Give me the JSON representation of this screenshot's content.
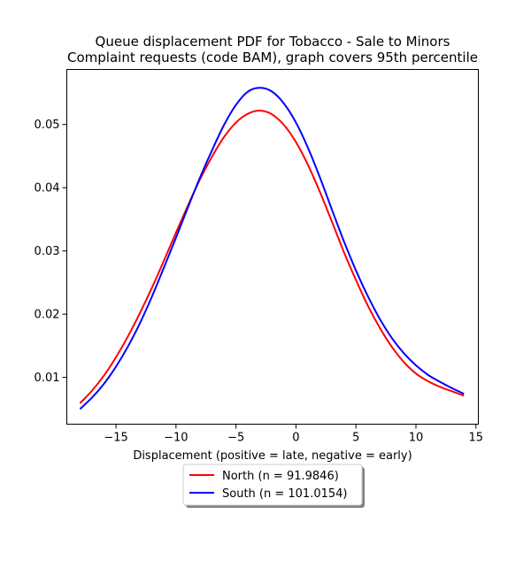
{
  "chart_data": {
    "type": "line",
    "title_lines": [
      "Queue displacement PDF for Tobacco - Sale to Minors",
      "Complaint  requests (code BAM), graph covers 95th percentile"
    ],
    "xlabel": "Displacement (positive = late, negative = early)",
    "ylabel": "",
    "xlim": [
      -19.1,
      15.2
    ],
    "ylim": [
      0.0026,
      0.0587
    ],
    "x_ticks": [
      -15,
      -10,
      -5,
      0,
      5,
      10,
      15
    ],
    "x_tick_labels": [
      "−15",
      "−10",
      "−5",
      "0",
      "5",
      "10",
      "15"
    ],
    "y_ticks": [
      0.01,
      0.02,
      0.03,
      0.04,
      0.05
    ],
    "y_tick_labels": [
      "0.01",
      "0.02",
      "0.03",
      "0.04",
      "0.05"
    ],
    "grid": false,
    "legend_position": "below-center",
    "series": [
      {
        "name": "North (n = 91.9846)",
        "color": "#ff0000",
        "x": [
          -18,
          -17,
          -16,
          -15,
          -14,
          -13,
          -12,
          -11,
          -10,
          -9,
          -8,
          -7,
          -6,
          -5,
          -4,
          -3,
          -2,
          -1,
          0,
          1,
          2,
          3,
          4,
          5,
          6,
          7,
          8,
          9,
          10,
          11,
          12,
          13,
          14
        ],
        "y": [
          0.0059,
          0.0079,
          0.0103,
          0.0132,
          0.0165,
          0.0202,
          0.0242,
          0.0285,
          0.0329,
          0.0372,
          0.0413,
          0.0449,
          0.048,
          0.0503,
          0.0517,
          0.0522,
          0.0516,
          0.0499,
          0.0472,
          0.0436,
          0.0393,
          0.0346,
          0.0298,
          0.0254,
          0.0213,
          0.0178,
          0.0148,
          0.0124,
          0.0106,
          0.0094,
          0.0085,
          0.0078,
          0.0071
        ]
      },
      {
        "name": "South (n = 101.0154)",
        "color": "#0000ff",
        "x": [
          -18,
          -17,
          -16,
          -15,
          -14,
          -13,
          -12,
          -11,
          -10,
          -9,
          -8,
          -7,
          -6,
          -5,
          -4,
          -3,
          -2,
          -1,
          0,
          1,
          2,
          3,
          4,
          5,
          6,
          7,
          8,
          9,
          10,
          11,
          12,
          13,
          14
        ],
        "y": [
          0.005,
          0.0068,
          0.009,
          0.0117,
          0.0149,
          0.0186,
          0.0228,
          0.0274,
          0.0321,
          0.0369,
          0.0416,
          0.0459,
          0.0499,
          0.0531,
          0.0552,
          0.0558,
          0.0552,
          0.0533,
          0.0503,
          0.0463,
          0.0416,
          0.0365,
          0.0315,
          0.0269,
          0.0228,
          0.0192,
          0.0162,
          0.0138,
          0.0119,
          0.0104,
          0.0093,
          0.0083,
          0.0074
        ]
      }
    ]
  }
}
